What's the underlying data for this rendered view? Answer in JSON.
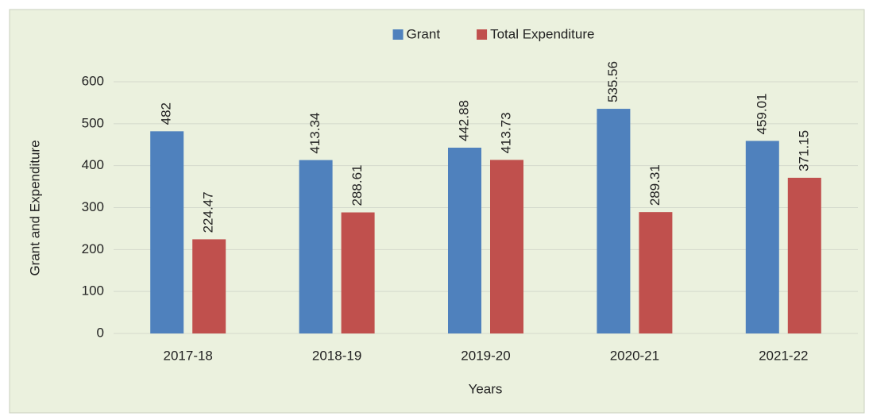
{
  "chart_data": {
    "type": "bar",
    "categories": [
      "2017-18",
      "2018-19",
      "2019-20",
      "2020-21",
      "2021-22"
    ],
    "series": [
      {
        "name": "Grant",
        "color": "#4f81bd",
        "values": [
          482,
          413.34,
          442.88,
          535.56,
          459.01
        ]
      },
      {
        "name": "Total Expenditure",
        "color": "#c0504d",
        "values": [
          224.47,
          288.61,
          413.73,
          289.31,
          371.15
        ]
      }
    ],
    "xlabel": "Years",
    "ylabel": "Grant and Expenditure",
    "ylim": [
      0,
      600
    ],
    "yticks": [
      0,
      100,
      200,
      300,
      400,
      500,
      600
    ],
    "grid": true,
    "legend": "top"
  }
}
